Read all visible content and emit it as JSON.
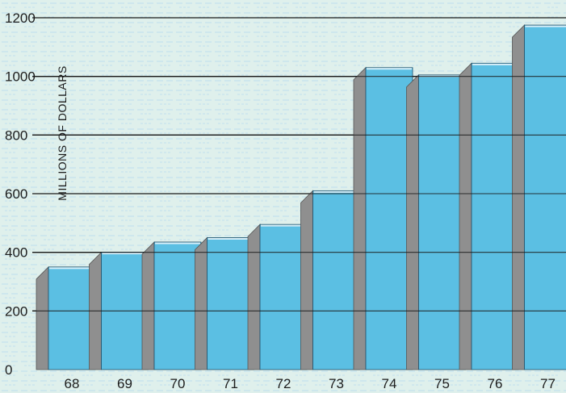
{
  "chart_data": {
    "type": "bar",
    "title": "",
    "xlabel": "",
    "ylabel": "MILLIONS OF DOLLARS",
    "categories": [
      "68",
      "69",
      "70",
      "71",
      "72",
      "73",
      "74",
      "75",
      "76",
      "77"
    ],
    "values": [
      350,
      400,
      435,
      450,
      495,
      610,
      1030,
      1005,
      1045,
      1175
    ],
    "ylim": [
      0,
      1200
    ],
    "yticks": [
      0,
      200,
      400,
      600,
      800,
      1000,
      1200
    ],
    "grid": true,
    "style": "3d-bar",
    "colors": {
      "bar_front": "#5bbfe3",
      "bar_side": "#8f8f8f",
      "bar_top": "#d6eef8",
      "grid": "#1a1a1a",
      "background": "#dff0ec",
      "pattern": "#c2e1ee"
    }
  }
}
